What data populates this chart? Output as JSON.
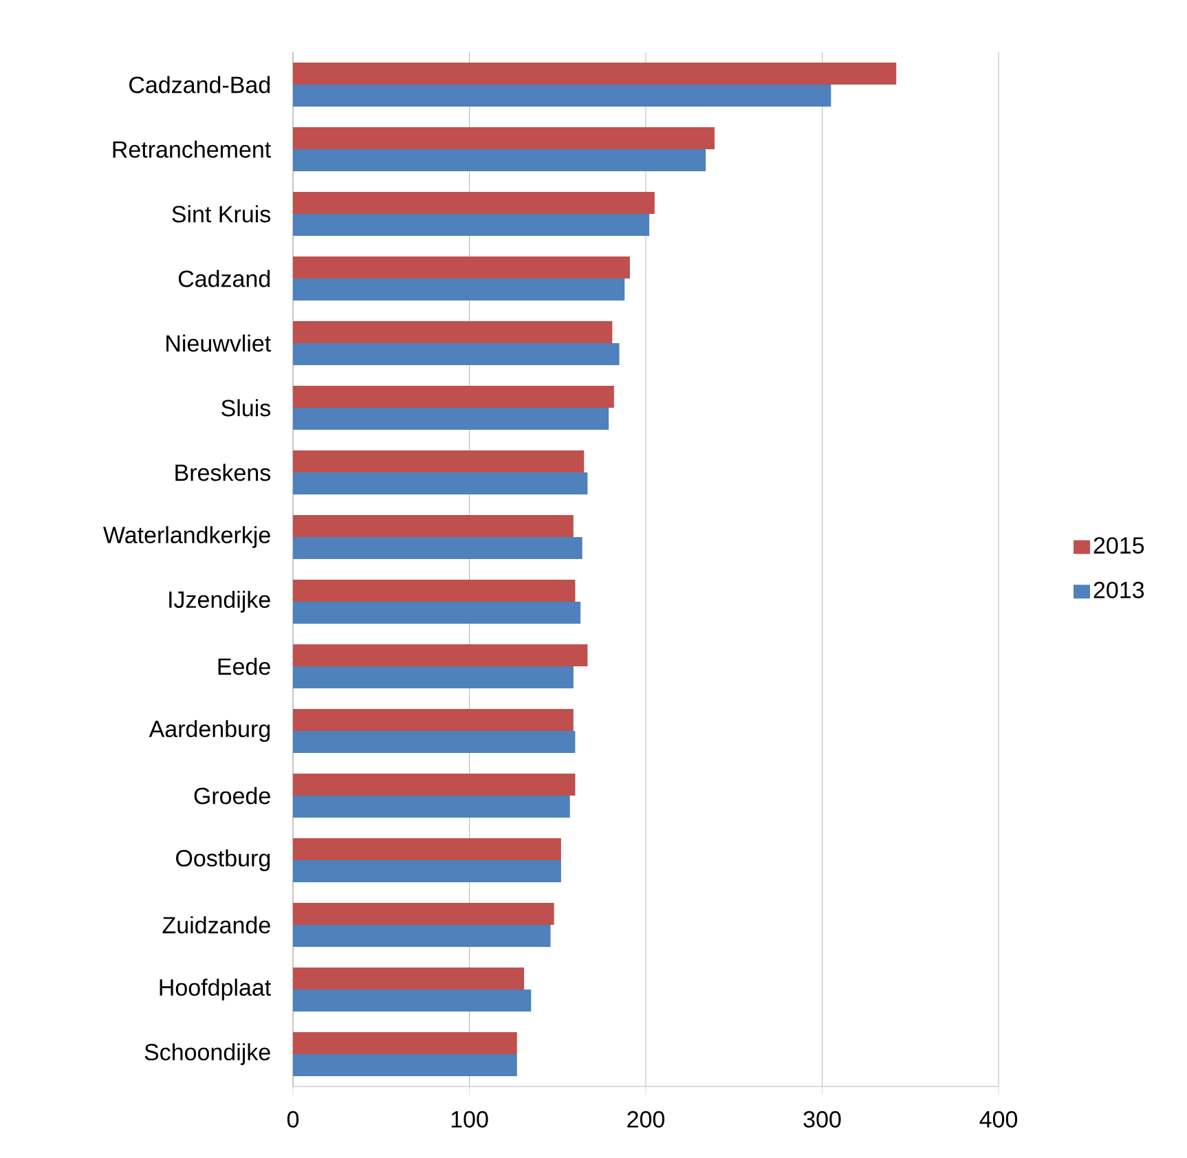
{
  "chart_data": {
    "type": "bar",
    "orientation": "horizontal",
    "categories": [
      "Cadzand-Bad",
      "Retranchement",
      "Sint Kruis",
      "Cadzand",
      "Nieuwvliet",
      "Sluis",
      "Breskens",
      "Waterlandkerkje",
      "IJzendijke",
      "Eede",
      "Aardenburg",
      "Groede",
      "Oostburg",
      "Zuidzande",
      "Hoofdplaat",
      "Schoondijke"
    ],
    "series": [
      {
        "name": "2015",
        "color": "#c0504d",
        "values": [
          342,
          239,
          205,
          191,
          181,
          182,
          165,
          159,
          160,
          167,
          159,
          160,
          152,
          148,
          131,
          127
        ]
      },
      {
        "name": "2013",
        "color": "#4f81bd",
        "values": [
          305,
          234,
          202,
          188,
          185,
          179,
          167,
          164,
          163,
          159,
          160,
          157,
          152,
          146,
          135,
          127
        ]
      }
    ],
    "xlim": [
      0,
      400
    ],
    "xticks": [
      0,
      100,
      200,
      300,
      400
    ],
    "grid": "x",
    "legend": "right"
  }
}
